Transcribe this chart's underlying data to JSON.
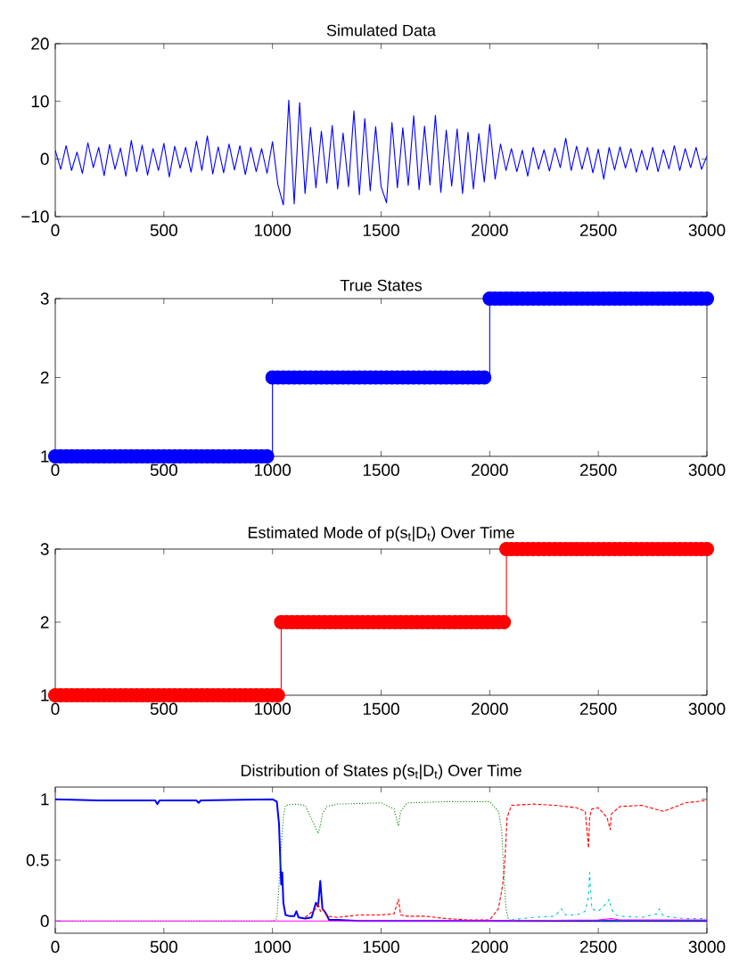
{
  "chart_data": [
    {
      "type": "line",
      "title": "Simulated Data",
      "xlim": [
        0,
        3000
      ],
      "ylim": [
        -10,
        20
      ],
      "xticks": [
        0,
        500,
        1000,
        1500,
        2000,
        2500,
        3000
      ],
      "yticks": [
        {
          "value": -10,
          "label": "−10"
        },
        0,
        10,
        20
      ],
      "marker": "none",
      "line_style": "solid",
      "series": [
        {
          "color": "#0000ff",
          "x": [
            0,
            25,
            50,
            75,
            100,
            125,
            150,
            175,
            200,
            225,
            250,
            275,
            300,
            325,
            350,
            375,
            400,
            425,
            450,
            475,
            500,
            525,
            550,
            575,
            600,
            625,
            650,
            675,
            700,
            725,
            750,
            775,
            800,
            825,
            850,
            875,
            900,
            925,
            950,
            975,
            1000,
            1025,
            1050,
            1075,
            1100,
            1125,
            1150,
            1175,
            1200,
            1225,
            1250,
            1275,
            1300,
            1325,
            1350,
            1375,
            1400,
            1425,
            1450,
            1475,
            1500,
            1525,
            1550,
            1575,
            1600,
            1625,
            1650,
            1675,
            1700,
            1725,
            1750,
            1775,
            1800,
            1825,
            1850,
            1875,
            1900,
            1925,
            1950,
            1975,
            2000,
            2025,
            2050,
            2075,
            2100,
            2125,
            2150,
            2175,
            2200,
            2225,
            2250,
            2275,
            2300,
            2325,
            2350,
            2375,
            2400,
            2425,
            2450,
            2475,
            2500,
            2525,
            2550,
            2575,
            2600,
            2625,
            2650,
            2675,
            2700,
            2725,
            2750,
            2775,
            2800,
            2825,
            2850,
            2875,
            2900,
            2925,
            2950,
            2975,
            3000
          ],
          "values": [
            1.5,
            -1.8,
            2.3,
            -2.0,
            1.2,
            -2.5,
            2.8,
            -1.5,
            2.0,
            -2.9,
            2.5,
            -1.8,
            1.9,
            -3.0,
            3.2,
            -2.2,
            2.4,
            -2.8,
            1.8,
            -2.0,
            2.7,
            -3.1,
            2.2,
            -1.6,
            2.0,
            -2.3,
            3.1,
            -2.0,
            4.0,
            -2.6,
            2.1,
            -2.4,
            2.6,
            -1.9,
            2.3,
            -2.7,
            2.0,
            -2.2,
            1.8,
            -2.5,
            3.0,
            -4.5,
            -8.0,
            10.2,
            -7.8,
            9.8,
            -6.0,
            5.5,
            -5.0,
            4.8,
            -4.2,
            5.8,
            -5.2,
            4.5,
            -4.8,
            8.3,
            -6.2,
            7.0,
            -5.5,
            5.6,
            -4.8,
            -7.6,
            6.3,
            -5.0,
            5.4,
            -4.6,
            7.5,
            -5.3,
            5.7,
            -4.5,
            7.6,
            -5.8,
            5.0,
            -4.7,
            5.2,
            -6.0,
            4.6,
            -5.2,
            4.4,
            -4.0,
            6.0,
            -3.5,
            2.6,
            -2.0,
            1.8,
            -2.2,
            1.5,
            -3.0,
            2.0,
            -1.8,
            1.6,
            -2.1,
            1.9,
            -1.5,
            3.6,
            -2.0,
            2.2,
            -1.8,
            2.0,
            -2.4,
            1.7,
            -3.5,
            2.0,
            -1.9,
            2.1,
            -1.6,
            1.8,
            -2.3,
            1.5,
            -1.9,
            2.0,
            -2.2,
            1.6,
            -1.7,
            2.3,
            -2.0,
            1.8,
            -1.5,
            2.0,
            -1.8,
            0.5
          ]
        }
      ]
    },
    {
      "type": "step",
      "title": "True States",
      "xlim": [
        0,
        3000
      ],
      "ylim": [
        1,
        3
      ],
      "xticks": [
        0,
        500,
        1000,
        1500,
        2000,
        2500,
        3000
      ],
      "yticks": [
        1,
        2,
        3
      ],
      "marker": "circle",
      "line_style": "solid",
      "series": [
        {
          "color": "#0000ff",
          "x": [
            0,
            25,
            50,
            75,
            100,
            125,
            150,
            175,
            200,
            225,
            250,
            275,
            300,
            325,
            350,
            375,
            400,
            425,
            450,
            475,
            500,
            525,
            550,
            575,
            600,
            625,
            650,
            675,
            700,
            725,
            750,
            775,
            800,
            825,
            850,
            875,
            900,
            925,
            950,
            975,
            1000,
            1025,
            1050,
            1075,
            1100,
            1125,
            1150,
            1175,
            1200,
            1225,
            1250,
            1275,
            1300,
            1325,
            1350,
            1375,
            1400,
            1425,
            1450,
            1475,
            1500,
            1525,
            1550,
            1575,
            1600,
            1625,
            1650,
            1675,
            1700,
            1725,
            1750,
            1775,
            1800,
            1825,
            1850,
            1875,
            1900,
            1925,
            1950,
            1975,
            2000,
            2025,
            2050,
            2075,
            2100,
            2125,
            2150,
            2175,
            2200,
            2225,
            2250,
            2275,
            2300,
            2325,
            2350,
            2375,
            2400,
            2425,
            2450,
            2475,
            2500,
            2525,
            2550,
            2575,
            2600,
            2625,
            2650,
            2675,
            2700,
            2725,
            2750,
            2775,
            2800,
            2825,
            2850,
            2875,
            2900,
            2925,
            2950,
            2975,
            3000
          ],
          "values": [
            1,
            1,
            1,
            1,
            1,
            1,
            1,
            1,
            1,
            1,
            1,
            1,
            1,
            1,
            1,
            1,
            1,
            1,
            1,
            1,
            1,
            1,
            1,
            1,
            1,
            1,
            1,
            1,
            1,
            1,
            1,
            1,
            1,
            1,
            1,
            1,
            1,
            1,
            1,
            1,
            2,
            2,
            2,
            2,
            2,
            2,
            2,
            2,
            2,
            2,
            2,
            2,
            2,
            2,
            2,
            2,
            2,
            2,
            2,
            2,
            2,
            2,
            2,
            2,
            2,
            2,
            2,
            2,
            2,
            2,
            2,
            2,
            2,
            2,
            2,
            2,
            2,
            2,
            2,
            2,
            3,
            3,
            3,
            3,
            3,
            3,
            3,
            3,
            3,
            3,
            3,
            3,
            3,
            3,
            3,
            3,
            3,
            3,
            3,
            3,
            3,
            3,
            3,
            3,
            3,
            3,
            3,
            3,
            3,
            3,
            3,
            3,
            3,
            3,
            3,
            3,
            3,
            3,
            3,
            3,
            3
          ]
        }
      ]
    },
    {
      "type": "step",
      "title": "Estimated Mode of p(s$_{t}$|D$_{t}$) Over Time",
      "xlim": [
        0,
        3000
      ],
      "ylim": [
        1,
        3
      ],
      "xticks": [
        0,
        500,
        1000,
        1500,
        2000,
        2500,
        3000
      ],
      "yticks": [
        1,
        2,
        3
      ],
      "marker": "circle",
      "line_style": "solid",
      "series": [
        {
          "color": "#ff0000",
          "x": [
            0,
            25,
            50,
            75,
            100,
            125,
            150,
            175,
            200,
            225,
            250,
            275,
            300,
            325,
            350,
            375,
            400,
            425,
            450,
            475,
            500,
            525,
            550,
            575,
            600,
            625,
            650,
            675,
            700,
            725,
            750,
            775,
            800,
            825,
            850,
            875,
            900,
            925,
            950,
            975,
            1000,
            1025,
            1040,
            1065,
            1090,
            1115,
            1140,
            1165,
            1190,
            1215,
            1240,
            1265,
            1290,
            1315,
            1340,
            1365,
            1390,
            1415,
            1440,
            1465,
            1490,
            1515,
            1540,
            1565,
            1590,
            1615,
            1640,
            1665,
            1690,
            1715,
            1740,
            1765,
            1790,
            1815,
            1840,
            1865,
            1890,
            1915,
            1940,
            1965,
            1990,
            2015,
            2040,
            2065,
            2077,
            2100,
            2125,
            2150,
            2175,
            2200,
            2225,
            2250,
            2275,
            2300,
            2325,
            2350,
            2375,
            2400,
            2425,
            2450,
            2475,
            2500,
            2525,
            2550,
            2575,
            2600,
            2625,
            2650,
            2675,
            2700,
            2725,
            2750,
            2775,
            2800,
            2825,
            2850,
            2875,
            2900,
            2925,
            2950,
            2975,
            3000
          ],
          "values": [
            1,
            1,
            1,
            1,
            1,
            1,
            1,
            1,
            1,
            1,
            1,
            1,
            1,
            1,
            1,
            1,
            1,
            1,
            1,
            1,
            1,
            1,
            1,
            1,
            1,
            1,
            1,
            1,
            1,
            1,
            1,
            1,
            1,
            1,
            1,
            1,
            1,
            1,
            1,
            1,
            1,
            1,
            2,
            2,
            2,
            2,
            2,
            2,
            2,
            2,
            2,
            2,
            2,
            2,
            2,
            2,
            2,
            2,
            2,
            2,
            2,
            2,
            2,
            2,
            2,
            2,
            2,
            2,
            2,
            2,
            2,
            2,
            2,
            2,
            2,
            2,
            2,
            2,
            2,
            2,
            2,
            2,
            2,
            2,
            3,
            3,
            3,
            3,
            3,
            3,
            3,
            3,
            3,
            3,
            3,
            3,
            3,
            3,
            3,
            3,
            3,
            3,
            3,
            3,
            3,
            3,
            3,
            3,
            3,
            3,
            3,
            3,
            3,
            3,
            3,
            3,
            3,
            3,
            3,
            3,
            3,
            3
          ]
        }
      ]
    },
    {
      "type": "line",
      "title": "Distribution of States p(s$_{t}$|D$_{t}$) Over Time",
      "xlim": [
        0,
        3000
      ],
      "ylim": [
        -0.1,
        1.1
      ],
      "xticks": [
        0,
        500,
        1000,
        1500,
        2000,
        2500,
        3000
      ],
      "yticks": [
        0,
        0.5,
        1
      ],
      "marker": "none",
      "series": [
        {
          "color": "#0000ff",
          "line_style": "solid",
          "x": [
            0,
            200,
            460,
            470,
            480,
            650,
            660,
            670,
            1000,
            1020,
            1030,
            1040,
            1045,
            1050,
            1060,
            1080,
            1100,
            1110,
            1120,
            1150,
            1180,
            1200,
            1210,
            1220,
            1230,
            1240,
            1250,
            1260,
            1300,
            1400,
            1600,
            2000,
            2500,
            3000
          ],
          "values": [
            1,
            0.99,
            0.99,
            0.96,
            0.99,
            0.99,
            0.97,
            0.99,
            1,
            0.98,
            0.8,
            0.3,
            0.4,
            0.15,
            0.05,
            0.04,
            0.04,
            0.08,
            0.03,
            0.02,
            0.03,
            0.15,
            0.12,
            0.33,
            0.1,
            0.08,
            0.05,
            0.01,
            0.01,
            0,
            0,
            0,
            0,
            0
          ]
        },
        {
          "color": "#008000",
          "line_style": "dotted",
          "x": [
            0,
            1000,
            1020,
            1030,
            1040,
            1050,
            1060,
            1100,
            1150,
            1190,
            1210,
            1220,
            1230,
            1250,
            1300,
            1500,
            1560,
            1580,
            1590,
            1620,
            1800,
            2000,
            2040,
            2055,
            2065,
            2075,
            2085,
            2100,
            2500,
            3000
          ],
          "values": [
            0,
            0,
            0.02,
            0.3,
            0.6,
            0.85,
            0.95,
            0.96,
            0.95,
            0.8,
            0.72,
            0.78,
            0.88,
            0.94,
            0.96,
            0.97,
            0.92,
            0.78,
            0.9,
            0.97,
            0.98,
            0.98,
            0.9,
            0.75,
            0.4,
            0.1,
            0.02,
            0,
            0,
            0
          ]
        },
        {
          "color": "#ff0000",
          "line_style": "dashed",
          "x": [
            1150,
            1200,
            1210,
            1220,
            1230,
            1250,
            1300,
            1400,
            1500,
            1560,
            1580,
            1590,
            1620,
            1700,
            1800,
            1900,
            2000,
            2040,
            2050,
            2060,
            2070,
            2080,
            2100,
            2200,
            2300,
            2400,
            2440,
            2455,
            2460,
            2470,
            2500,
            2540,
            2555,
            2560,
            2600,
            2700,
            2800,
            2900,
            3000
          ],
          "values": [
            0.03,
            0.1,
            0.15,
            0.08,
            0.1,
            0.04,
            0.03,
            0.05,
            0.05,
            0.06,
            0.18,
            0.05,
            0.04,
            0.04,
            0.02,
            0.01,
            0.01,
            0.1,
            0.2,
            0.3,
            0.5,
            0.85,
            0.95,
            0.96,
            0.95,
            0.93,
            0.9,
            0.6,
            0.85,
            0.92,
            0.93,
            0.85,
            0.75,
            0.88,
            0.94,
            0.95,
            0.9,
            0.97,
            0.99
          ]
        },
        {
          "color": "#00bfbf",
          "line_style": "dashdot",
          "x": [
            2100,
            2200,
            2300,
            2330,
            2350,
            2400,
            2440,
            2455,
            2460,
            2470,
            2500,
            2540,
            2550,
            2560,
            2580,
            2600,
            2700,
            2770,
            2780,
            2800,
            2900,
            3000
          ],
          "values": [
            0.01,
            0.03,
            0.04,
            0.1,
            0.05,
            0.05,
            0.08,
            0.2,
            0.4,
            0.1,
            0.08,
            0.15,
            0.18,
            0.1,
            0.05,
            0.04,
            0.03,
            0.06,
            0.1,
            0.04,
            0.02,
            0.02
          ]
        },
        {
          "color": "#ff00ff",
          "line_style": "solid",
          "x": [
            0,
            1000,
            2000,
            2500,
            2560,
            2600,
            3000
          ],
          "values": [
            0,
            0,
            0,
            0.01,
            0.02,
            0.01,
            0.01
          ]
        }
      ]
    }
  ]
}
